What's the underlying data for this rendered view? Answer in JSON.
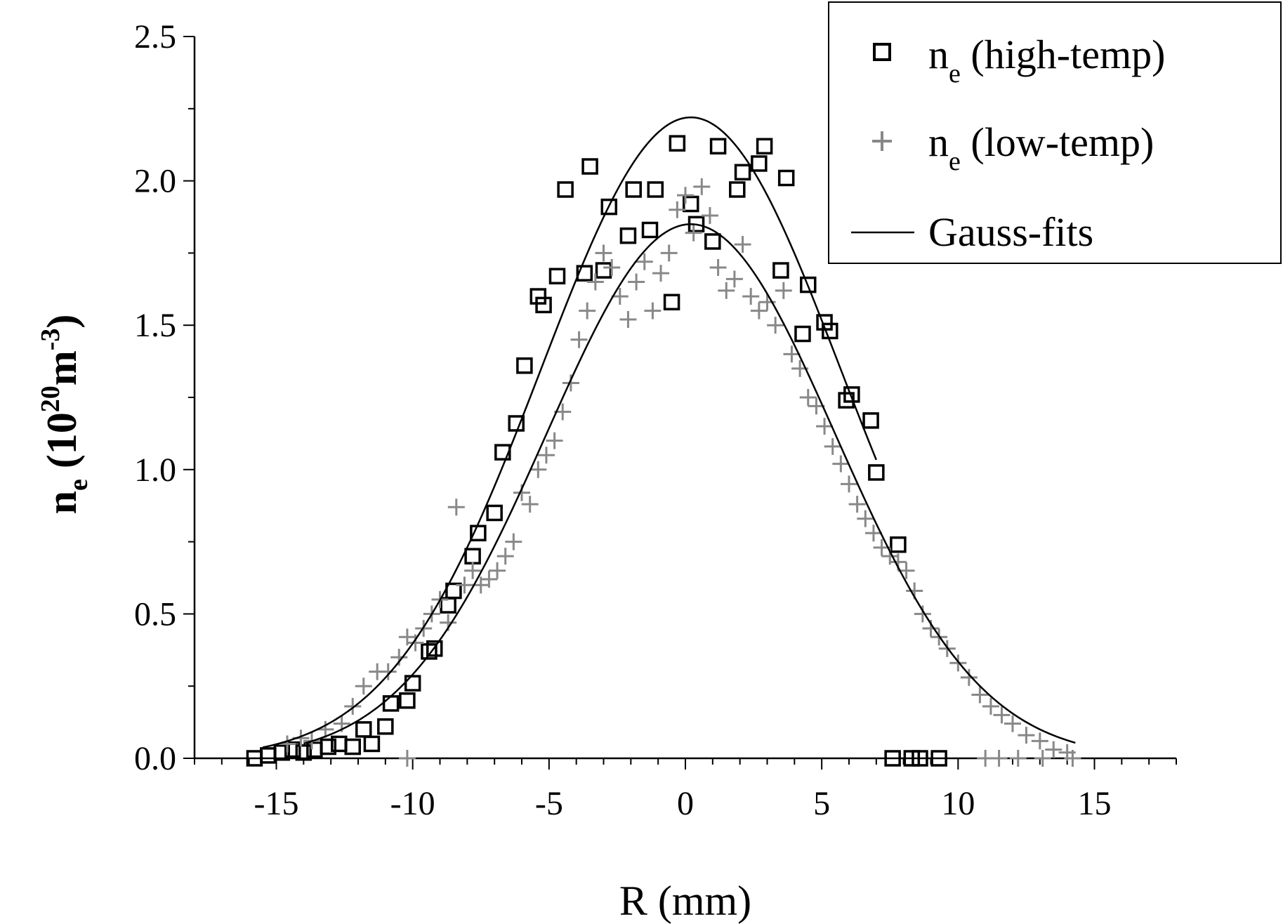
{
  "chart_data": {
    "type": "scatter",
    "title": "",
    "xlabel": "R (mm)",
    "ylabel": {
      "base": "n",
      "sub": "e",
      "unit_open": " (10",
      "unit_sup": "20",
      "unit_mid": "m",
      "unit_sup2": "-3",
      "unit_close": ")"
    },
    "xlim": [
      -18,
      18
    ],
    "ylim": [
      0,
      2.5
    ],
    "x_ticks": [
      -15,
      -10,
      -5,
      0,
      5,
      10,
      15
    ],
    "x_tick_labels": [
      "-15",
      "-10",
      "-5",
      "0",
      "5",
      "10",
      "15"
    ],
    "y_ticks": [
      0,
      0.5,
      1.0,
      1.5,
      2.0,
      2.5
    ],
    "y_tick_labels": [
      "0.0",
      "0.5",
      "1.0",
      "1.5",
      "2.0",
      "2.5"
    ],
    "grid": false,
    "legend_position": "top-right",
    "legend": [
      {
        "base": "n",
        "sub": "e",
        "rest": " (high-temp)",
        "marker": "square"
      },
      {
        "base": "n",
        "sub": "e",
        "rest": " (low-temp)",
        "marker": "plus"
      },
      {
        "base": "Gauss-fits",
        "sub": "",
        "rest": "",
        "marker": "line"
      }
    ],
    "series": [
      {
        "name": "ne (high-temp)",
        "marker": "square",
        "color": "#000000",
        "x": [
          -15.8,
          -15.3,
          -14.8,
          -14.4,
          -14.0,
          -13.6,
          -13.1,
          -12.7,
          -12.2,
          -11.8,
          -11.5,
          -11.0,
          -10.8,
          -10.2,
          -10.0,
          -9.4,
          -9.2,
          -8.7,
          -8.5,
          -7.8,
          -7.6,
          -7.0,
          -6.7,
          -6.2,
          -5.9,
          -5.4,
          -5.2,
          -4.7,
          -4.4,
          -3.7,
          -3.5,
          -3.0,
          -2.8,
          -2.1,
          -1.9,
          -1.3,
          -1.1,
          -0.5,
          -0.3,
          0.2,
          0.4,
          1.0,
          1.2,
          1.9,
          2.1,
          2.7,
          2.9,
          3.5,
          3.7,
          4.3,
          4.5,
          5.1,
          5.3,
          5.9,
          6.1,
          6.8,
          7.0,
          7.6,
          7.8,
          8.3,
          8.6,
          9.3
        ],
        "y": [
          0.0,
          0.01,
          0.02,
          0.03,
          0.02,
          0.03,
          0.04,
          0.05,
          0.04,
          0.1,
          0.05,
          0.11,
          0.19,
          0.2,
          0.26,
          0.37,
          0.38,
          0.53,
          0.58,
          0.7,
          0.78,
          0.85,
          1.06,
          1.16,
          1.36,
          1.6,
          1.57,
          1.67,
          1.97,
          1.68,
          2.05,
          1.69,
          1.91,
          1.81,
          1.97,
          1.83,
          1.97,
          1.58,
          2.13,
          1.92,
          1.85,
          1.79,
          2.12,
          1.97,
          2.03,
          2.06,
          2.12,
          1.69,
          2.01,
          1.47,
          1.64,
          1.51,
          1.48,
          1.24,
          1.26,
          1.17,
          0.99,
          0.0,
          0.74,
          0.0,
          0.0,
          0.0
        ]
      },
      {
        "name": "ne (low-temp)",
        "marker": "plus",
        "color": "#888888",
        "x": [
          -14.6,
          -14.1,
          -13.7,
          -13.2,
          -12.6,
          -12.2,
          -11.8,
          -11.3,
          -10.9,
          -10.5,
          -10.2,
          -9.9,
          -9.6,
          -9.3,
          -9.0,
          -8.7,
          -8.4,
          -8.1,
          -7.8,
          -7.5,
          -7.2,
          -6.9,
          -6.6,
          -6.3,
          -6.0,
          -5.7,
          -5.4,
          -5.1,
          -4.8,
          -4.5,
          -4.2,
          -3.9,
          -3.6,
          -3.3,
          -3.0,
          -2.7,
          -2.4,
          -2.1,
          -1.8,
          -1.5,
          -1.2,
          -0.9,
          -0.6,
          -0.3,
          0.0,
          0.3,
          0.6,
          0.9,
          1.2,
          1.5,
          1.8,
          2.1,
          2.4,
          2.7,
          3.0,
          3.3,
          3.6,
          3.9,
          4.2,
          4.5,
          4.8,
          5.1,
          5.4,
          5.7,
          6.0,
          6.3,
          6.6,
          6.9,
          7.2,
          7.5,
          7.8,
          8.1,
          8.4,
          8.7,
          9.0,
          9.3,
          9.6,
          10.0,
          10.4,
          10.8,
          11.2,
          11.6,
          12.0,
          12.5,
          13.0,
          13.5,
          14.0,
          -10.2,
          11.0,
          11.5,
          12.2,
          13.1,
          14.2
        ],
        "y": [
          0.05,
          0.07,
          0.06,
          0.1,
          0.12,
          0.18,
          0.25,
          0.3,
          0.3,
          0.35,
          0.42,
          0.4,
          0.45,
          0.5,
          0.55,
          0.47,
          0.87,
          0.6,
          0.65,
          0.6,
          0.62,
          0.65,
          0.7,
          0.75,
          0.92,
          0.88,
          1.0,
          1.05,
          1.1,
          1.2,
          1.3,
          1.45,
          1.55,
          1.65,
          1.75,
          1.7,
          1.6,
          1.52,
          1.65,
          1.72,
          1.55,
          1.68,
          1.75,
          1.9,
          1.95,
          1.82,
          1.98,
          1.88,
          1.7,
          1.62,
          1.66,
          1.78,
          1.6,
          1.55,
          1.58,
          1.5,
          1.62,
          1.4,
          1.35,
          1.25,
          1.22,
          1.15,
          1.08,
          1.02,
          0.95,
          0.88,
          0.83,
          0.78,
          0.73,
          0.7,
          0.68,
          0.65,
          0.58,
          0.5,
          0.45,
          0.42,
          0.38,
          0.33,
          0.28,
          0.22,
          0.18,
          0.15,
          0.12,
          0.08,
          0.06,
          0.03,
          0.02,
          0.0,
          0.0,
          0.0,
          0.0,
          0.0,
          0.0
        ]
      },
      {
        "name": "Gauss fit (high-temp)",
        "marker": "line",
        "color": "#000000",
        "amplitude": 2.22,
        "center": 0.2,
        "sigma": 5.5,
        "x_range": [
          -15.5,
          7.0
        ]
      },
      {
        "name": "Gauss fit (low-temp)",
        "marker": "line",
        "color": "#000000",
        "amplitude": 1.85,
        "center": 0.2,
        "sigma": 5.3,
        "x_range": [
          -14.0,
          14.3
        ]
      }
    ]
  }
}
